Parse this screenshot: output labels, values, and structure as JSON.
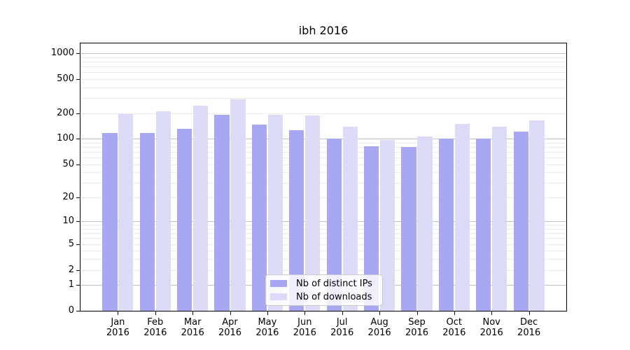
{
  "chart_data": {
    "type": "bar",
    "title": "ibh 2016",
    "y_scale": "log10(1+v)",
    "categories": [
      "Jan",
      "Feb",
      "Mar",
      "Apr",
      "May",
      "Jun",
      "Jul",
      "Aug",
      "Sep",
      "Oct",
      "Nov",
      "Dec"
    ],
    "category_year": "2016",
    "series": [
      {
        "name": "Nb of distinct IPs",
        "color": "#a7a7f2",
        "values": [
          117,
          117,
          131,
          192,
          147,
          125,
          101,
          82,
          80,
          101,
          100,
          122
        ]
      },
      {
        "name": "Nb of downloads",
        "color": "#dbdbf8",
        "values": [
          193,
          210,
          243,
          290,
          192,
          187,
          138,
          97,
          107,
          150,
          139,
          164
        ]
      }
    ],
    "yticks": [
      0,
      1,
      2,
      5,
      10,
      20,
      50,
      100,
      200,
      500,
      1000
    ],
    "ylim": [
      0,
      1300
    ],
    "grid": true,
    "legend_position": "lower center"
  },
  "colors": {
    "grid_major": "#bfbfbf",
    "grid_minor": "#ebebeb",
    "spine": "#000000",
    "text": "#000000",
    "background": "#ffffff"
  }
}
